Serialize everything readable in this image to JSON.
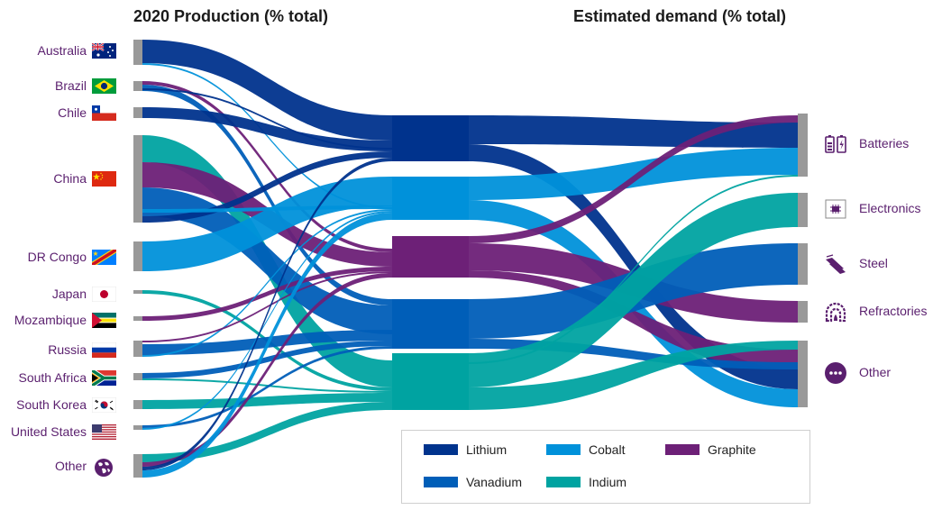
{
  "headers": {
    "left": "2020 Production (% total)",
    "right": "Estimated demand (% total)"
  },
  "colors": {
    "Lithium": "#00338d",
    "Vanadium": "#005eb8",
    "Cobalt": "#0091da",
    "Graphite": "#6d2077",
    "Indium": "#00a3a1",
    "node": "#999999",
    "label": "#5a1f6e"
  },
  "sources": [
    {
      "name": "Australia",
      "flag": "flag-australia"
    },
    {
      "name": "Brazil",
      "flag": "flag-brazil"
    },
    {
      "name": "Chile",
      "flag": "flag-chile"
    },
    {
      "name": "China",
      "flag": "flag-china"
    },
    {
      "name": "DR Congo",
      "flag": "flag-dr-congo"
    },
    {
      "name": "Japan",
      "flag": "flag-japan"
    },
    {
      "name": "Mozambique",
      "flag": "flag-mozambique"
    },
    {
      "name": "Russia",
      "flag": "flag-russia"
    },
    {
      "name": "South Africa",
      "flag": "flag-south-africa"
    },
    {
      "name": "South Korea",
      "flag": "flag-south-korea"
    },
    {
      "name": "United States",
      "flag": "flag-united-states"
    },
    {
      "name": "Other",
      "flag": "globe-icon"
    }
  ],
  "destinations": [
    {
      "name": "Batteries",
      "icon": "battery-icon"
    },
    {
      "name": "Electronics",
      "icon": "chip-icon"
    },
    {
      "name": "Steel",
      "icon": "steel-beams-icon"
    },
    {
      "name": "Refractories",
      "icon": "furnace-icon"
    },
    {
      "name": "Other",
      "icon": "more-icon"
    }
  ],
  "legend": [
    {
      "name": "Lithium"
    },
    {
      "name": "Cobalt"
    },
    {
      "name": "Graphite"
    },
    {
      "name": "Vanadium"
    },
    {
      "name": "Indium"
    }
  ]
}
